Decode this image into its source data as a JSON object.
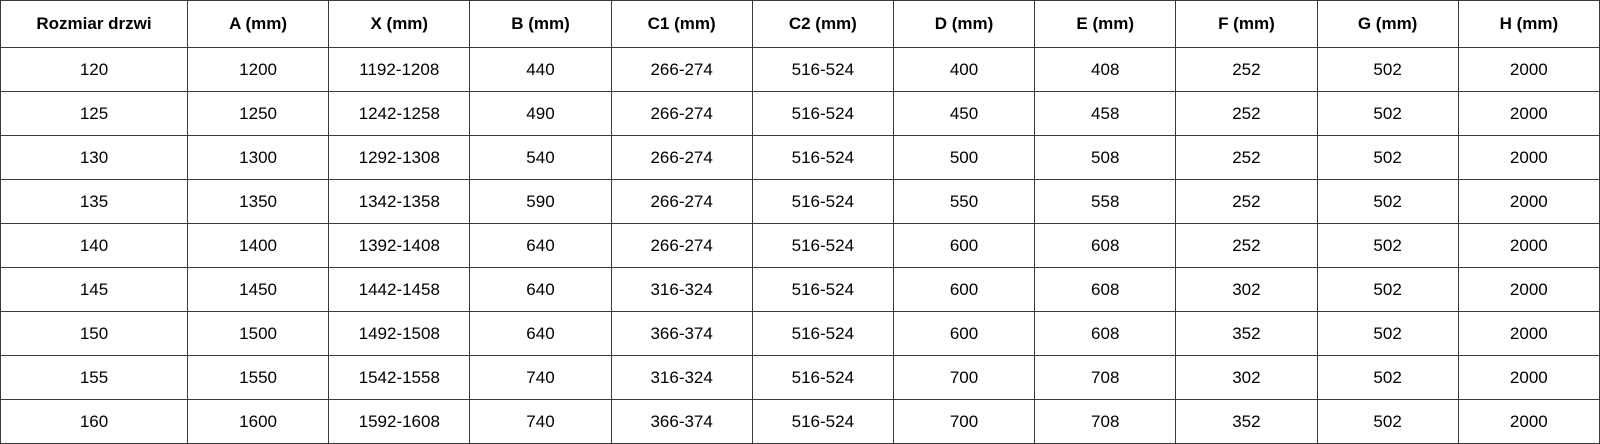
{
  "table": {
    "headers": [
      "Rozmiar drzwi",
      "A (mm)",
      "X (mm)",
      "B (mm)",
      "C1 (mm)",
      "C2 (mm)",
      "D (mm)",
      "E (mm)",
      "F (mm)",
      "G (mm)",
      "H (mm)"
    ],
    "rows": [
      [
        "120",
        "1200",
        "1192-1208",
        "440",
        "266-274",
        "516-524",
        "400",
        "408",
        "252",
        "502",
        "2000"
      ],
      [
        "125",
        "1250",
        "1242-1258",
        "490",
        "266-274",
        "516-524",
        "450",
        "458",
        "252",
        "502",
        "2000"
      ],
      [
        "130",
        "1300",
        "1292-1308",
        "540",
        "266-274",
        "516-524",
        "500",
        "508",
        "252",
        "502",
        "2000"
      ],
      [
        "135",
        "1350",
        "1342-1358",
        "590",
        "266-274",
        "516-524",
        "550",
        "558",
        "252",
        "502",
        "2000"
      ],
      [
        "140",
        "1400",
        "1392-1408",
        "640",
        "266-274",
        "516-524",
        "600",
        "608",
        "252",
        "502",
        "2000"
      ],
      [
        "145",
        "1450",
        "1442-1458",
        "640",
        "316-324",
        "516-524",
        "600",
        "608",
        "302",
        "502",
        "2000"
      ],
      [
        "150",
        "1500",
        "1492-1508",
        "640",
        "366-374",
        "516-524",
        "600",
        "608",
        "352",
        "502",
        "2000"
      ],
      [
        "155",
        "1550",
        "1542-1558",
        "740",
        "316-324",
        "516-524",
        "700",
        "708",
        "302",
        "502",
        "2000"
      ],
      [
        "160",
        "1600",
        "1592-1608",
        "740",
        "366-374",
        "516-524",
        "700",
        "708",
        "352",
        "502",
        "2000"
      ]
    ]
  }
}
